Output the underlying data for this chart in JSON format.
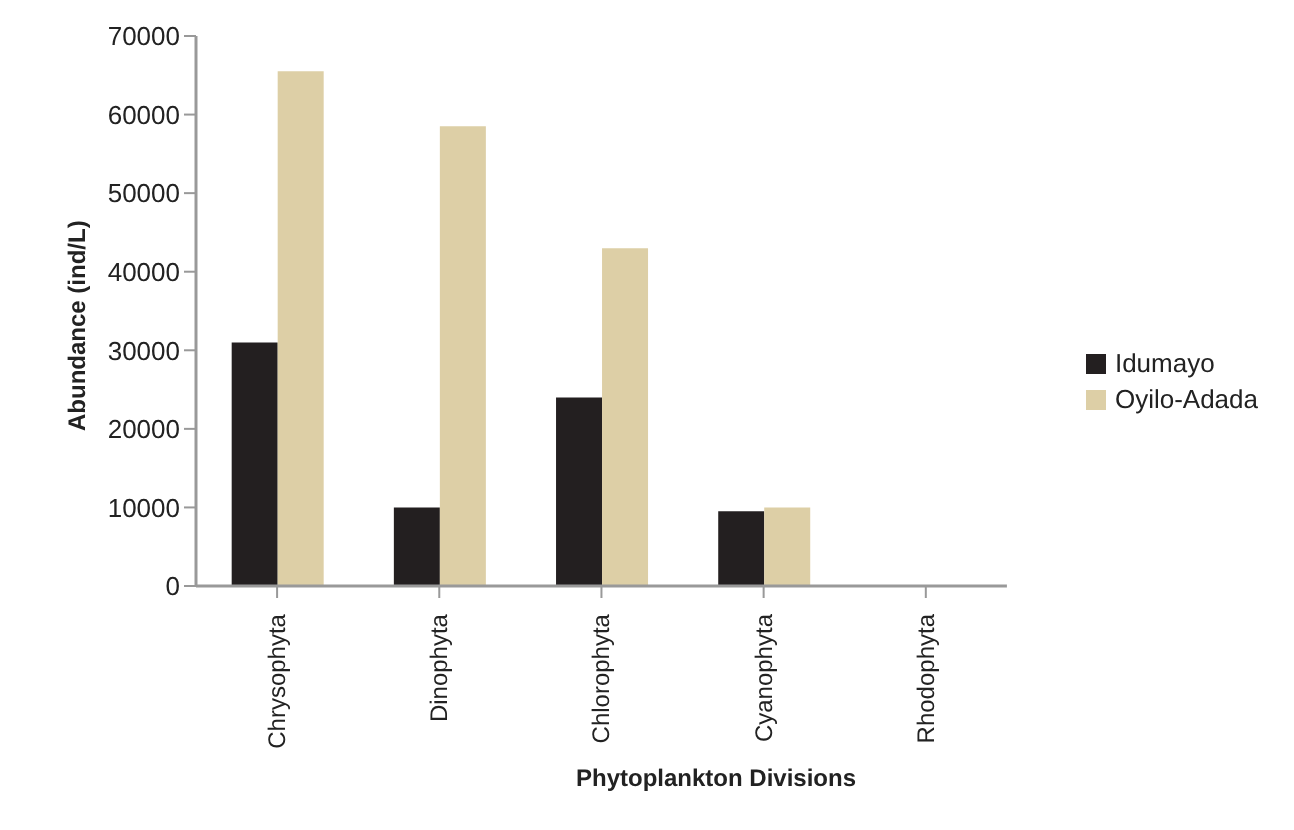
{
  "chart_data": {
    "type": "bar",
    "xlabel": "Phytoplankton Divisions",
    "ylabel": "Abundance (ind/L)",
    "categories": [
      "Chrysophyta",
      "Dinophyta",
      "Chlorophyta",
      "Cyanophyta",
      "Rhodophyta"
    ],
    "series": [
      {
        "name": "Idumayo",
        "color": "#231f20",
        "values": [
          31000,
          10000,
          24000,
          9500,
          0
        ]
      },
      {
        "name": "Oyilo-Adada",
        "color": "#ddcfa6",
        "values": [
          65500,
          58500,
          43000,
          10000,
          0
        ]
      }
    ],
    "ylim": [
      0,
      70000
    ],
    "yticks": [
      0,
      10000,
      20000,
      30000,
      40000,
      50000,
      60000,
      70000
    ],
    "grid": false,
    "legend": "right"
  }
}
